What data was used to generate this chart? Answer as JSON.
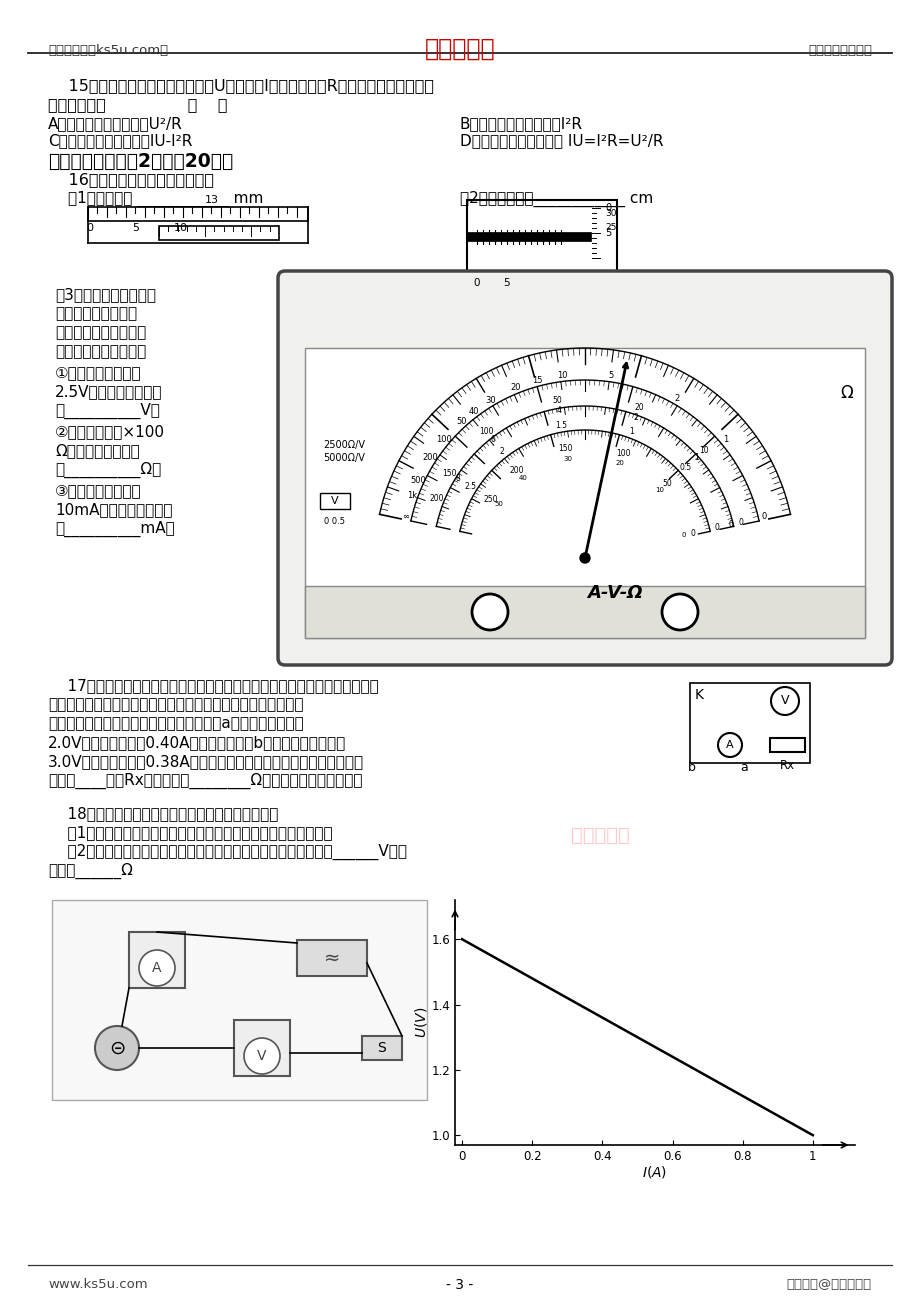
{
  "bg_color": "#ffffff",
  "header_left": "高考资源网（ks5u.com）",
  "header_center": "高考资源网",
  "header_right": "您身边的高考专家",
  "footer_left": "www.ks5u.com",
  "footer_center": "- 3 -",
  "footer_right": "版权所有@高考资源网",
  "q15_line1": "    15．一个直流电动机所加电压为U，电流为I，线圈内阻为R，当它工作时，下述说",
  "q15_line2": "法中正确的是                （    ）",
  "q15_A": "A．电动机的输出功率为U²/R",
  "q15_B": "B．电动机的发热功率为I²R",
  "q15_C": "C．电动机的输出功率为IU-I²R",
  "q15_D": "D．电动机的功率可写作 IU=I²R=U²/R",
  "sec3": "三、实验题（每空2分，共20分）",
  "q16": "    16．读出下列测量仪器的读数。",
  "q16_1": "（1）游标卡尺 ____________ mm",
  "q16_2": "（2）螺旋测微器____________ cm",
  "q16_3a": "（3）如右图所示，是某",
  "q16_3b": "次使用多用表的实验",
  "q16_3c": "中，多用电表表盘指针",
  "q16_3d": "所示的位置请你读数：",
  "q16_3e": "①如果使用的是直流",
  "q16_3f": "2.5V的电压挡，则读数",
  "q16_3g": "为__________V；",
  "q16_3h": "②如果使用的是×100",
  "q16_3i": "Ω的电阻挡，则读数",
  "q16_3j": "为__________Ω；",
  "q16_3k": "③如果使用的是直流",
  "q16_3l": "10mA的电流挡，则读数",
  "q16_3m": "为__________mA。",
  "q17_1": "    17．为提高金属丝电阻的测量精确度，减少误差，实验中需要确定电流表的",
  "q17_2": "内接或外接，由于电表内阻不清楚，一同学采用了试触法进行判",
  "q17_3": "断，将图示电路闭合后，电压表移动端接到a点，电压表示数为",
  "q17_4": "2.0V，电流表读数为0.40A，当移动端接到b点时，电压表示数为",
  "q17_5": "3.0V，电流表读数为0.38A（电源内阻不计），由以上数据可知应采用",
  "q17_6": "电流表____接法Rx的测量值是________Ω。（保留两位有效数字）",
  "q18_0": "    18．用电流表和电压表测定电池的电动势和内电阻",
  "q18_1": "    （1）请你不改动已接导线，在下图中把还需要连接的导线补上；",
  "q18_2": "    （2）测得该电源的伏安特性曲线如上图所示，该电源的电动势为______V，内",
  "q18_3": "电阻为______Ω"
}
